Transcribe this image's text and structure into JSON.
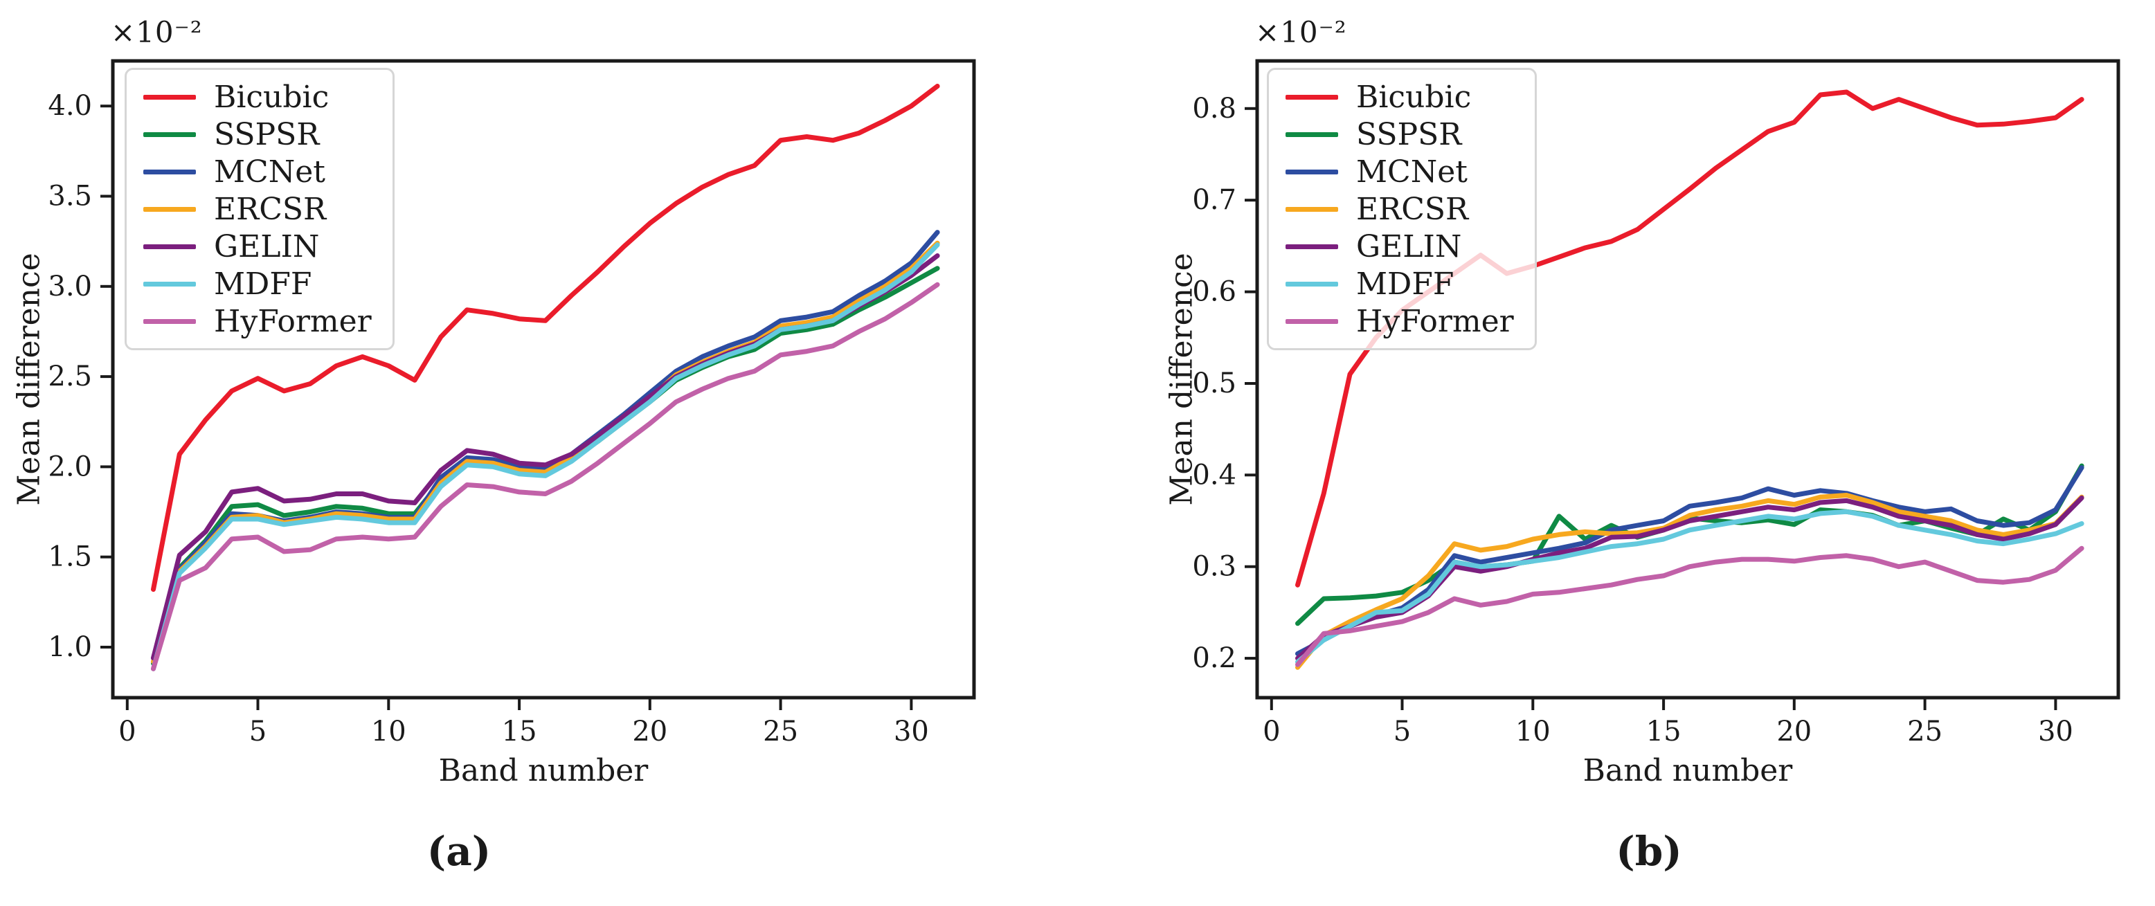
{
  "figure": {
    "description": "Two line charts of mean difference per spectral band for seven super-resolution methods",
    "text_color": "#1a1a1a",
    "legend_border_color": "#d6d6d6"
  },
  "chart_data": [
    {
      "type": "line",
      "caption": "(a)",
      "xlabel": "Band number",
      "ylabel": "Mean difference",
      "offset_text": "×10⁻²",
      "grid": false,
      "legend_position": "upper left",
      "x": [
        1,
        2,
        3,
        4,
        5,
        6,
        7,
        8,
        9,
        10,
        11,
        12,
        13,
        14,
        15,
        16,
        17,
        18,
        19,
        20,
        21,
        22,
        23,
        24,
        25,
        26,
        27,
        28,
        29,
        30,
        31
      ],
      "xlim": [
        -0.55,
        32.4
      ],
      "ylim": [
        0.72,
        4.25
      ],
      "xticks": [
        0,
        5,
        10,
        15,
        20,
        25,
        30
      ],
      "yticks": [
        1.0,
        1.5,
        2.0,
        2.5,
        3.0,
        3.5,
        4.0
      ],
      "ytick_labels": [
        "1.0",
        "1.5",
        "2.0",
        "2.5",
        "3.0",
        "3.5",
        "4.0"
      ],
      "series": [
        {
          "name": "Bicubic",
          "color": "#ea1c2b",
          "values": [
            1.32,
            2.07,
            2.26,
            2.42,
            2.49,
            2.42,
            2.46,
            2.56,
            2.61,
            2.56,
            2.48,
            2.72,
            2.87,
            2.85,
            2.82,
            2.81,
            2.95,
            3.08,
            3.22,
            3.35,
            3.46,
            3.55,
            3.62,
            3.67,
            3.81,
            3.83,
            3.81,
            3.85,
            3.92,
            4.0,
            4.11
          ]
        },
        {
          "name": "SSPSR",
          "color": "#0f8a44",
          "values": [
            0.91,
            1.44,
            1.59,
            1.78,
            1.79,
            1.73,
            1.75,
            1.78,
            1.77,
            1.74,
            1.74,
            1.92,
            2.03,
            2.02,
            1.98,
            1.97,
            2.04,
            2.14,
            2.25,
            2.36,
            2.48,
            2.55,
            2.61,
            2.65,
            2.74,
            2.76,
            2.79,
            2.87,
            2.94,
            3.02,
            3.1
          ]
        },
        {
          "name": "MCNet",
          "color": "#2d4da1",
          "values": [
            0.94,
            1.43,
            1.58,
            1.74,
            1.73,
            1.7,
            1.72,
            1.75,
            1.74,
            1.72,
            1.72,
            1.94,
            2.05,
            2.04,
            2.0,
            1.99,
            2.07,
            2.18,
            2.29,
            2.41,
            2.53,
            2.61,
            2.67,
            2.72,
            2.81,
            2.83,
            2.86,
            2.95,
            3.03,
            3.13,
            3.3
          ]
        },
        {
          "name": "ERCSR",
          "color": "#f7a81f",
          "values": [
            0.92,
            1.42,
            1.56,
            1.72,
            1.73,
            1.69,
            1.71,
            1.74,
            1.73,
            1.71,
            1.71,
            1.91,
            2.03,
            2.02,
            1.98,
            1.97,
            2.05,
            2.16,
            2.27,
            2.38,
            2.51,
            2.58,
            2.64,
            2.69,
            2.78,
            2.8,
            2.83,
            2.92,
            3.0,
            3.1,
            3.24
          ]
        },
        {
          "name": "GELIN",
          "color": "#7b1f7e",
          "values": [
            0.94,
            1.51,
            1.64,
            1.86,
            1.88,
            1.81,
            1.82,
            1.85,
            1.85,
            1.81,
            1.8,
            1.98,
            2.09,
            2.07,
            2.02,
            2.01,
            2.07,
            2.17,
            2.28,
            2.39,
            2.5,
            2.57,
            2.63,
            2.68,
            2.76,
            2.78,
            2.81,
            2.89,
            2.97,
            3.06,
            3.17
          ]
        },
        {
          "name": "MDFF",
          "color": "#63c9dd",
          "values": [
            0.88,
            1.41,
            1.55,
            1.71,
            1.71,
            1.68,
            1.7,
            1.72,
            1.71,
            1.69,
            1.69,
            1.89,
            2.01,
            2.0,
            1.96,
            1.95,
            2.03,
            2.14,
            2.25,
            2.36,
            2.49,
            2.56,
            2.62,
            2.67,
            2.76,
            2.78,
            2.81,
            2.9,
            2.98,
            3.08,
            3.23
          ]
        },
        {
          "name": "HyFormer",
          "color": "#c161a8",
          "values": [
            0.88,
            1.37,
            1.44,
            1.6,
            1.61,
            1.53,
            1.54,
            1.6,
            1.61,
            1.6,
            1.61,
            1.78,
            1.9,
            1.89,
            1.86,
            1.85,
            1.92,
            2.02,
            2.13,
            2.24,
            2.36,
            2.43,
            2.49,
            2.53,
            2.62,
            2.64,
            2.67,
            2.75,
            2.82,
            2.91,
            3.01
          ]
        }
      ]
    },
    {
      "type": "line",
      "caption": "(b)",
      "xlabel": "Band number",
      "ylabel": "Mean difference",
      "offset_text": "×10⁻²",
      "grid": false,
      "legend_position": "upper left",
      "x": [
        1,
        2,
        3,
        4,
        5,
        6,
        7,
        8,
        9,
        10,
        11,
        12,
        13,
        14,
        15,
        16,
        17,
        18,
        19,
        20,
        21,
        22,
        23,
        24,
        25,
        26,
        27,
        28,
        29,
        30,
        31
      ],
      "xlim": [
        -0.55,
        32.4
      ],
      "ylim": [
        0.157,
        0.852
      ],
      "xticks": [
        0,
        5,
        10,
        15,
        20,
        25,
        30
      ],
      "yticks": [
        0.2,
        0.3,
        0.4,
        0.5,
        0.6,
        0.7,
        0.8
      ],
      "ytick_labels": [
        "0.2",
        "0.3",
        "0.4",
        "0.5",
        "0.6",
        "0.7",
        "0.8"
      ],
      "series": [
        {
          "name": "Bicubic",
          "color": "#ea1c2b",
          "values": [
            0.28,
            0.38,
            0.51,
            0.55,
            0.58,
            0.6,
            0.62,
            0.64,
            0.62,
            0.628,
            0.638,
            0.648,
            0.655,
            0.668,
            0.69,
            0.712,
            0.735,
            0.755,
            0.775,
            0.785,
            0.815,
            0.818,
            0.8,
            0.81,
            0.8,
            0.79,
            0.782,
            0.783,
            0.786,
            0.79,
            0.81
          ]
        },
        {
          "name": "SSPSR",
          "color": "#0f8a44",
          "values": [
            0.238,
            0.265,
            0.266,
            0.268,
            0.272,
            0.285,
            0.305,
            0.3,
            0.302,
            0.306,
            0.355,
            0.33,
            0.345,
            0.332,
            0.34,
            0.353,
            0.35,
            0.348,
            0.351,
            0.346,
            0.362,
            0.36,
            0.356,
            0.345,
            0.35,
            0.342,
            0.335,
            0.352,
            0.34,
            0.36,
            0.41
          ]
        },
        {
          "name": "MCNet",
          "color": "#2d4da1",
          "values": [
            0.205,
            0.22,
            0.235,
            0.247,
            0.255,
            0.275,
            0.312,
            0.305,
            0.31,
            0.315,
            0.32,
            0.326,
            0.34,
            0.345,
            0.35,
            0.366,
            0.37,
            0.375,
            0.385,
            0.378,
            0.383,
            0.38,
            0.372,
            0.365,
            0.36,
            0.363,
            0.35,
            0.345,
            0.348,
            0.362,
            0.408
          ]
        },
        {
          "name": "ERCSR",
          "color": "#f7a81f",
          "values": [
            0.19,
            0.225,
            0.24,
            0.253,
            0.265,
            0.29,
            0.325,
            0.318,
            0.322,
            0.33,
            0.335,
            0.338,
            0.336,
            0.337,
            0.342,
            0.356,
            0.362,
            0.366,
            0.372,
            0.368,
            0.376,
            0.378,
            0.37,
            0.36,
            0.355,
            0.35,
            0.34,
            0.335,
            0.34,
            0.347,
            0.376
          ]
        },
        {
          "name": "GELIN",
          "color": "#7b1f7e",
          "values": [
            0.2,
            0.225,
            0.235,
            0.245,
            0.25,
            0.268,
            0.3,
            0.295,
            0.3,
            0.308,
            0.315,
            0.32,
            0.332,
            0.333,
            0.34,
            0.35,
            0.355,
            0.36,
            0.365,
            0.362,
            0.37,
            0.372,
            0.365,
            0.355,
            0.35,
            0.345,
            0.335,
            0.33,
            0.336,
            0.346,
            0.375
          ]
        },
        {
          "name": "MDFF",
          "color": "#63c9dd",
          "values": [
            0.196,
            0.22,
            0.235,
            0.25,
            0.252,
            0.27,
            0.305,
            0.3,
            0.302,
            0.306,
            0.31,
            0.316,
            0.322,
            0.325,
            0.33,
            0.34,
            0.345,
            0.35,
            0.355,
            0.352,
            0.358,
            0.36,
            0.355,
            0.345,
            0.34,
            0.335,
            0.328,
            0.325,
            0.33,
            0.336,
            0.347
          ]
        },
        {
          "name": "HyFormer",
          "color": "#c161a8",
          "values": [
            0.193,
            0.227,
            0.23,
            0.235,
            0.24,
            0.25,
            0.265,
            0.258,
            0.262,
            0.27,
            0.272,
            0.276,
            0.28,
            0.286,
            0.29,
            0.3,
            0.305,
            0.308,
            0.308,
            0.306,
            0.31,
            0.312,
            0.308,
            0.3,
            0.305,
            0.295,
            0.285,
            0.283,
            0.286,
            0.296,
            0.32
          ]
        }
      ]
    }
  ]
}
